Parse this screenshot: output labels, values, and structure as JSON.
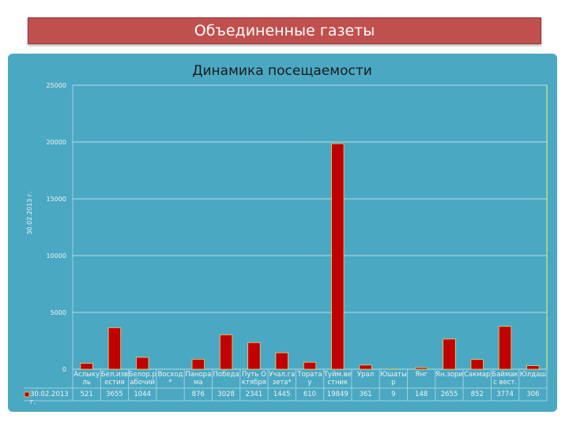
{
  "header": {
    "title": "Объединенные газеты"
  },
  "chart_data": {
    "type": "bar",
    "title": "Динамика посещаемости",
    "categories": [
      "Аслыкуль",
      "Бел.известия",
      "Белор.рабочий",
      "Восход*",
      "Панорама",
      "Победа",
      "Путь Октября",
      "Учал.газета*",
      "Торатау",
      "Туйм.вестник",
      "Урал",
      "Юшатыр",
      "Янг",
      "Ян.зори",
      "Сакмар",
      "Баймакс вест.",
      "Юлдаш"
    ],
    "series": [
      {
        "name": "30.02.2013 г.",
        "color": "#c00000",
        "values": [
          521,
          3655,
          1044,
          null,
          876,
          3028,
          2341,
          1445,
          610,
          19849,
          361,
          9,
          148,
          2655,
          852,
          3774,
          306
        ]
      }
    ],
    "ylabel": "30.02.2013 г.",
    "ylim": [
      0,
      25000
    ],
    "yticks": [
      0,
      5000,
      10000,
      15000,
      20000,
      25000
    ],
    "grid": true
  }
}
